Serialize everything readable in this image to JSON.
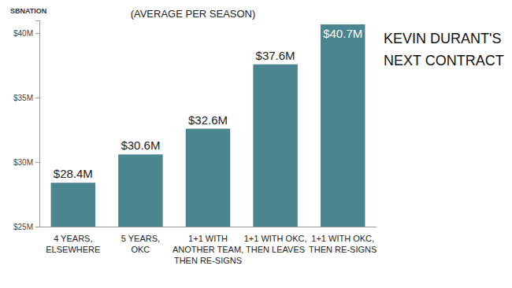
{
  "chart_data": {
    "type": "bar",
    "title": "KEVIN DURANT'S\nNEXT CONTRACT",
    "subtitle": "(AVERAGE PER SEASON)",
    "logo": "SBNATION",
    "categories": [
      "4 YEARS,\nELSEWHERE",
      "5 YEARS,\nOKC",
      "1+1 WITH\nANOTHER TEAM,\nTHEN RE-SIGNS",
      "1+1 WITH OKC,\nTHEN LEAVES",
      "1+1 WITH OKC,\nTHEN RE-SIGNS"
    ],
    "values": [
      28.4,
      30.6,
      32.6,
      37.6,
      40.7
    ],
    "value_labels": [
      "$28.4M",
      "$30.6M",
      "$32.6M",
      "$37.6M",
      "$40.7M"
    ],
    "color": "#4a8590",
    "ylim": [
      25,
      41
    ],
    "yticks": [
      {
        "value": 25,
        "label": "$25M"
      },
      {
        "value": 30,
        "label": "$30M"
      },
      {
        "value": 35,
        "label": "$35M"
      },
      {
        "value": 40,
        "label": "$40M"
      }
    ],
    "grid": false,
    "data_labels": true
  }
}
